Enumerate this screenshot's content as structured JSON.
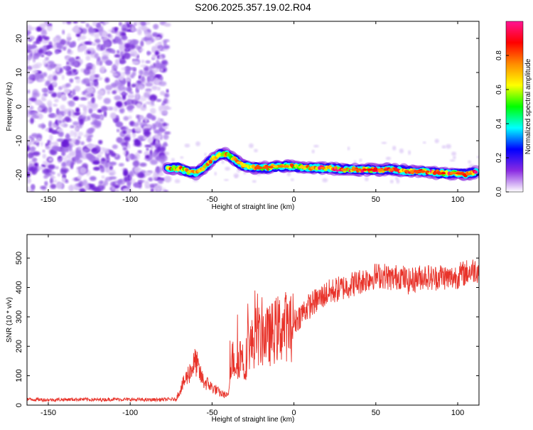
{
  "title": "S206.2025.357.19.02.R04",
  "chart_data": [
    {
      "type": "heatmap",
      "xlabel": "Height of straight line (km)",
      "ylabel": "Frequency (Hz)",
      "xlim": [
        -163,
        113
      ],
      "ylim": [
        -25,
        25
      ],
      "xticks": [
        -150,
        -100,
        -50,
        0,
        50,
        100
      ],
      "yticks": [
        -20,
        -10,
        0,
        10,
        20
      ],
      "colorbar": {
        "label": "Normalized spectral amplitude",
        "range": [
          0,
          1
        ],
        "ticks": [
          "0.0",
          "0.2",
          "0.4",
          "0.6",
          "0.8"
        ],
        "colors": [
          "#ffffff",
          "#8a2be2",
          "#0000ff",
          "#00ffff",
          "#00ff00",
          "#ffff00",
          "#ff8c00",
          "#ff0000",
          "#ff1493"
        ]
      },
      "noise_region_x": [
        -163,
        -77
      ],
      "signal_track": {
        "x": [
          -77,
          -70,
          -65,
          -60,
          -55,
          -50,
          -45,
          -40,
          -35,
          -30,
          -20,
          -10,
          0,
          10,
          20,
          30,
          40,
          50,
          60,
          70,
          80,
          90,
          100,
          105,
          112
        ],
        "frequency_hz": [
          -18,
          -18,
          -19,
          -19.5,
          -18,
          -15.5,
          -14,
          -14,
          -16,
          -17.5,
          -18,
          -17.5,
          -17.5,
          -18,
          -18,
          -18.5,
          -18.5,
          -18.5,
          -18.5,
          -19,
          -19,
          -19.5,
          -19.5,
          -20,
          -19
        ]
      },
      "grid": false
    },
    {
      "type": "line",
      "xlabel": "Height of straight line (km)",
      "ylabel": "SNR (10 * v/v)",
      "xlim": [
        -163,
        113
      ],
      "ylim": [
        0,
        580
      ],
      "xticks": [
        -150,
        -100,
        -50,
        0,
        50,
        100
      ],
      "yticks": [
        0,
        100,
        200,
        300,
        400,
        500
      ],
      "series": [
        {
          "color": "#e8332a",
          "x": [
            -163,
            -150,
            -140,
            -130,
            -120,
            -110,
            -100,
            -90,
            -80,
            -72,
            -70,
            -66,
            -63,
            -60,
            -57,
            -55,
            -52,
            -50,
            -47,
            -45,
            -42,
            -40,
            -38,
            -35,
            -32,
            -30,
            -28,
            -26,
            -24,
            -22,
            -20,
            -18,
            -16,
            -14,
            -12,
            -10,
            -8,
            -5,
            -2,
            0,
            3,
            6,
            10,
            15,
            20,
            25,
            30,
            35,
            40,
            45,
            50,
            55,
            60,
            65,
            70,
            75,
            80,
            85,
            90,
            95,
            100,
            105,
            110,
            113
          ],
          "values": [
            20,
            18,
            19,
            20,
            18,
            20,
            19,
            18,
            19,
            20,
            45,
            90,
            120,
            150,
            100,
            80,
            70,
            60,
            50,
            40,
            35,
            30,
            160,
            140,
            180,
            120,
            220,
            200,
            230,
            240,
            220,
            250,
            230,
            240,
            250,
            260,
            260,
            270,
            260,
            280,
            300,
            320,
            340,
            360,
            380,
            390,
            400,
            410,
            420,
            430,
            440,
            440,
            430,
            440,
            420,
            430,
            440,
            430,
            440,
            430,
            440,
            450,
            460,
            460
          ]
        }
      ],
      "grid": false
    }
  ]
}
